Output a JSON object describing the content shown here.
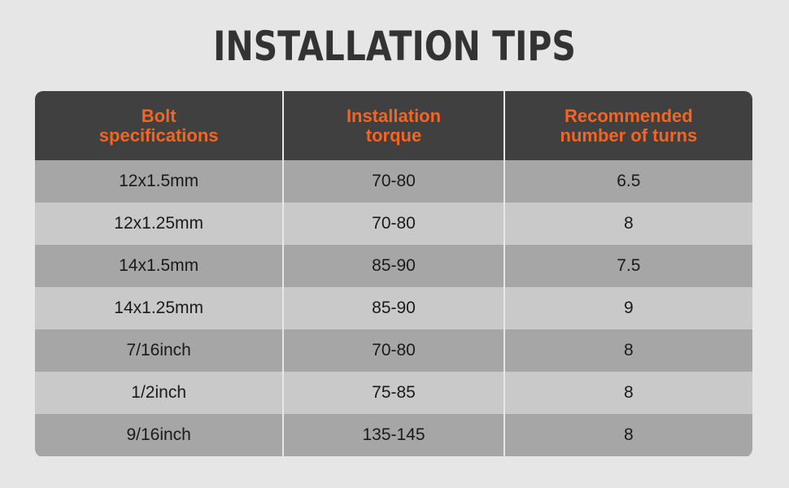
{
  "title": "INSTALLATION TIPS",
  "colors": {
    "accent": "#f26522",
    "header_bg": "#404040",
    "row_dark": "#a6a6a6",
    "row_light": "#c9c9c9",
    "background": "#e6e6e6"
  },
  "table": {
    "headers": [
      "Bolt\nspecifications",
      "Installation\ntorque",
      "Recommended\nnumber of turns"
    ],
    "rows": [
      [
        "12x1.5mm",
        "70-80",
        "6.5"
      ],
      [
        "12x1.25mm",
        "70-80",
        "8"
      ],
      [
        "14x1.5mm",
        "85-90",
        "7.5"
      ],
      [
        "14x1.25mm",
        "85-90",
        "9"
      ],
      [
        "7/16inch",
        "70-80",
        "8"
      ],
      [
        "1/2inch",
        "75-85",
        "8"
      ],
      [
        "9/16inch",
        "135-145",
        "8"
      ]
    ]
  }
}
